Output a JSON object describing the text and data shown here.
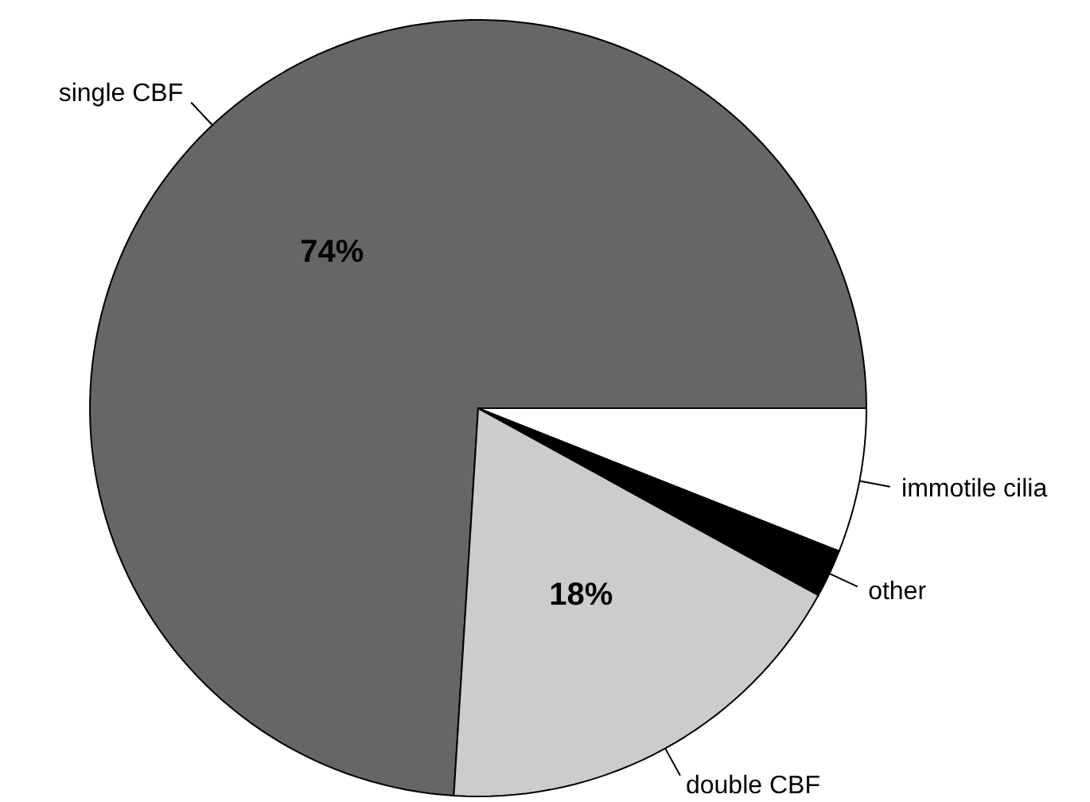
{
  "chart_data": {
    "type": "pie",
    "categories": [
      "single CBF",
      "double CBF",
      "other",
      "immotile cilia"
    ],
    "values": [
      74,
      18,
      2,
      6
    ],
    "colors": [
      "#666666",
      "#cccccc",
      "#000000",
      "#ffffff"
    ],
    "value_labels": [
      "74%",
      "18%",
      null,
      null
    ]
  }
}
